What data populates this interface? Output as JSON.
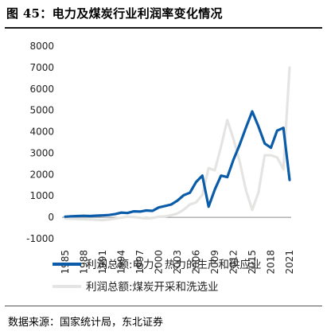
{
  "title": "图 45：电力及煤炭行业利润率变化情况",
  "source": "数据来源：国家统计局，东北证券",
  "colors": {
    "series_0": "#0b5ca8",
    "series_1": "#e4e4e2"
  },
  "chart_data": {
    "type": "line",
    "ylim": [
      -1000,
      8000
    ],
    "yticks": [
      "8000",
      "7000",
      "6000",
      "5000",
      "4000",
      "3000",
      "2000",
      "1000",
      "0",
      "-1000"
    ],
    "xticks": [
      "1985",
      "1988",
      "1991",
      "1994",
      "1997",
      "2000",
      "2003",
      "2006",
      "2009",
      "2012",
      "2015",
      "2018",
      "2021"
    ],
    "xlim": [
      1985,
      2021
    ],
    "legend_position": "bottom",
    "series": [
      {
        "name": "利润总额:电力、热力的生产和供应业",
        "color": "#0b5ca8",
        "x": [
          1985,
          1986,
          1987,
          1988,
          1989,
          1990,
          1991,
          1992,
          1993,
          1994,
          1995,
          1996,
          1997,
          1998,
          1999,
          2000,
          2001,
          2002,
          2003,
          2004,
          2005,
          2006,
          2007,
          2008,
          2009,
          2010,
          2011,
          2012,
          2013,
          2014,
          2015,
          2016,
          2017,
          2018,
          2019,
          2020,
          2021
        ],
        "values": [
          30,
          50,
          60,
          70,
          60,
          80,
          90,
          110,
          150,
          220,
          200,
          280,
          270,
          320,
          300,
          460,
          530,
          600,
          780,
          1030,
          1150,
          1650,
          1950,
          500,
          1300,
          1950,
          1880,
          2700,
          3400,
          4200,
          4950,
          4250,
          3450,
          3250,
          4050,
          4180,
          1750
        ]
      },
      {
        "name": "利润总额:煤炭开采和洗选业",
        "color": "#e4e4e2",
        "x": [
          1985,
          1986,
          1987,
          1988,
          1989,
          1990,
          1991,
          1992,
          1993,
          1994,
          1995,
          1996,
          1997,
          1998,
          1999,
          2000,
          2001,
          2002,
          2003,
          2004,
          2005,
          2006,
          2007,
          2008,
          2009,
          2010,
          2011,
          2012,
          2013,
          2014,
          2015,
          2016,
          2017,
          2018,
          2019,
          2020,
          2021
        ],
        "values": [
          -60,
          -70,
          -80,
          -90,
          -100,
          -120,
          -130,
          -100,
          -60,
          -20,
          30,
          10,
          -20,
          -50,
          -30,
          30,
          40,
          100,
          180,
          350,
          600,
          700,
          1050,
          2300,
          2200,
          3300,
          4550,
          3650,
          2600,
          1250,
          350,
          1150,
          2900,
          2900,
          2800,
          2250,
          7000
        ]
      }
    ]
  }
}
